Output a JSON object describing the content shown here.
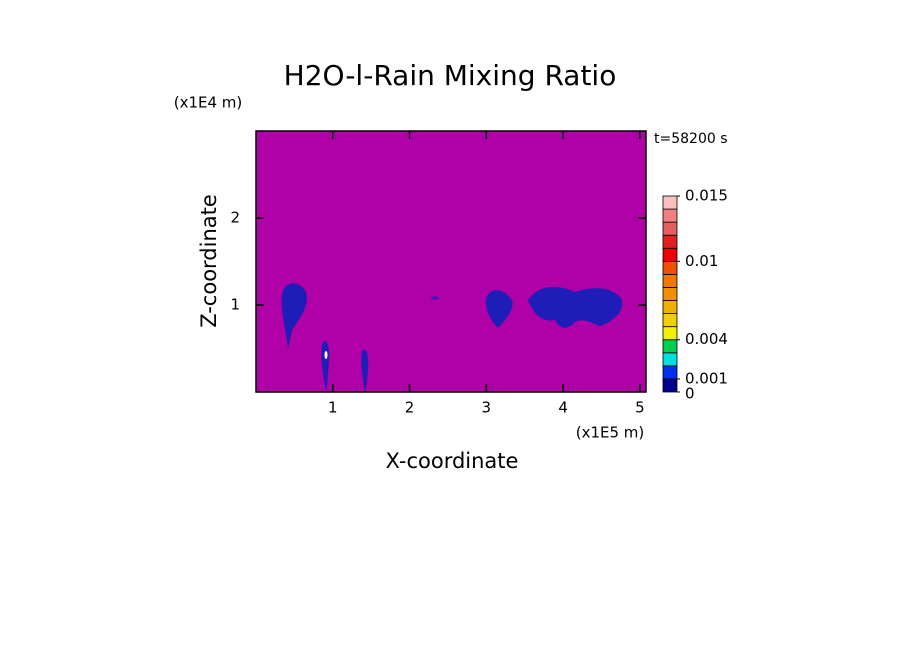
{
  "chart_data": {
    "type": "contour",
    "title": "H2O-l-Rain Mixing Ratio",
    "x_label": "X-coordinate",
    "x_unit": "(x1E5 m)",
    "y_label": "Z-coordinate",
    "y_unit": "(x1E4 m)",
    "time_label": "t=58200 s",
    "xlim": [
      0,
      5.08
    ],
    "xticks": [
      1,
      2,
      3,
      4,
      5
    ],
    "ylim": [
      0,
      3
    ],
    "yticks": [
      1,
      2
    ],
    "background_color": "#b000a8",
    "feature_color": "#1020b8",
    "colorbar": {
      "clim": [
        0,
        0.015
      ],
      "ticks": [
        0,
        0.001,
        0.004,
        0.01,
        0.015
      ],
      "colors": [
        "#000090",
        "#0030f0",
        "#00e0e0",
        "#00d050",
        "#f0f000",
        "#f0d000",
        "#f0b000",
        "#f09000",
        "#f07800",
        "#f05000",
        "#f00000",
        "#e02020",
        "#e06060",
        "#f08080",
        "#f8c0c0"
      ]
    }
  }
}
